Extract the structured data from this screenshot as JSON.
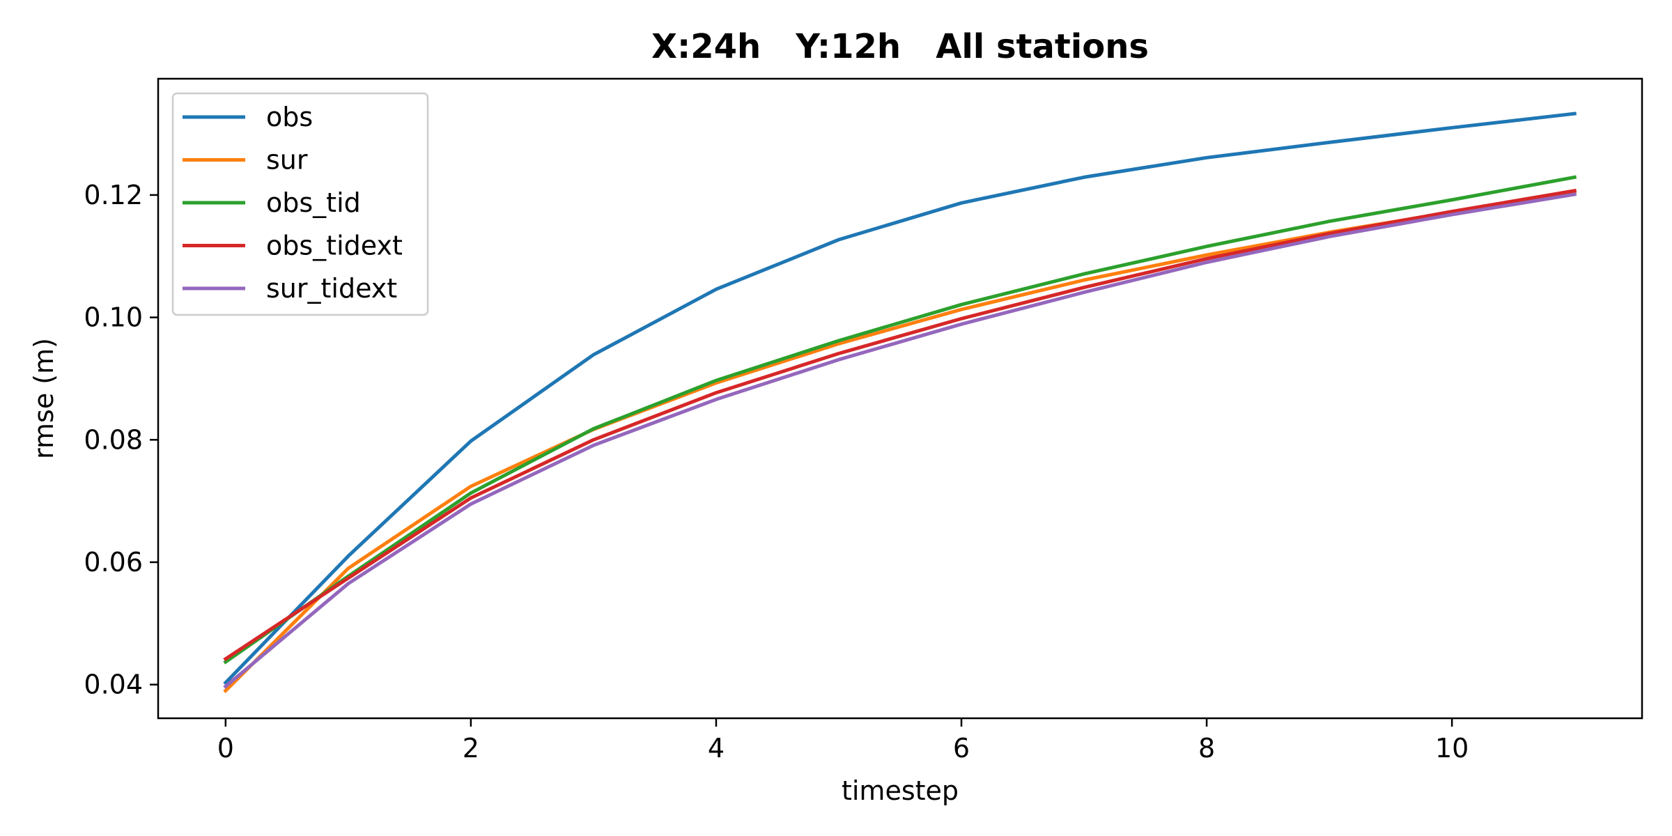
{
  "chart_data": {
    "type": "line",
    "title": "X:24h   Y:12h   All stations",
    "xlabel": "timestep",
    "ylabel": "rmse (m)",
    "xlim": [
      -0.55,
      11.55
    ],
    "ylim": [
      0.0345,
      0.139
    ],
    "xticks": [
      0,
      2,
      4,
      6,
      8,
      10
    ],
    "xtick_labels": [
      "0",
      "2",
      "4",
      "6",
      "8",
      "10"
    ],
    "yticks": [
      0.04,
      0.06,
      0.08,
      0.1,
      0.12
    ],
    "ytick_labels": [
      "0.04",
      "0.06",
      "0.08",
      "0.10",
      "0.12"
    ],
    "grid": false,
    "legend_position": "top-left",
    "x": [
      0,
      1,
      2,
      3,
      4,
      5,
      6,
      7,
      8,
      9,
      10,
      11
    ],
    "series": [
      {
        "name": "obs",
        "color": "#1f77b4",
        "values": [
          0.0403,
          0.061,
          0.0798,
          0.0939,
          0.1046,
          0.1127,
          0.1187,
          0.1229,
          0.1261,
          0.1286,
          0.131,
          0.1333
        ]
      },
      {
        "name": "sur",
        "color": "#ff7f0e",
        "values": [
          0.039,
          0.059,
          0.0724,
          0.0817,
          0.0893,
          0.0957,
          0.1013,
          0.1061,
          0.1102,
          0.1139,
          0.1172,
          0.1205
        ]
      },
      {
        "name": "obs_tid",
        "color": "#2ca02c",
        "values": [
          0.0437,
          0.0577,
          0.0713,
          0.0818,
          0.0897,
          0.0962,
          0.1021,
          0.1071,
          0.1116,
          0.1157,
          0.1192,
          0.1229
        ]
      },
      {
        "name": "obs_tidext",
        "color": "#d62728",
        "values": [
          0.0442,
          0.0574,
          0.0705,
          0.08,
          0.0877,
          0.0941,
          0.0998,
          0.1049,
          0.1096,
          0.1137,
          0.1173,
          0.1207
        ]
      },
      {
        "name": "sur_tidext",
        "color": "#9467bd",
        "values": [
          0.0397,
          0.0565,
          0.0695,
          0.0791,
          0.0866,
          0.0931,
          0.0989,
          0.1041,
          0.109,
          0.1132,
          0.1168,
          0.1201
        ]
      }
    ]
  }
}
